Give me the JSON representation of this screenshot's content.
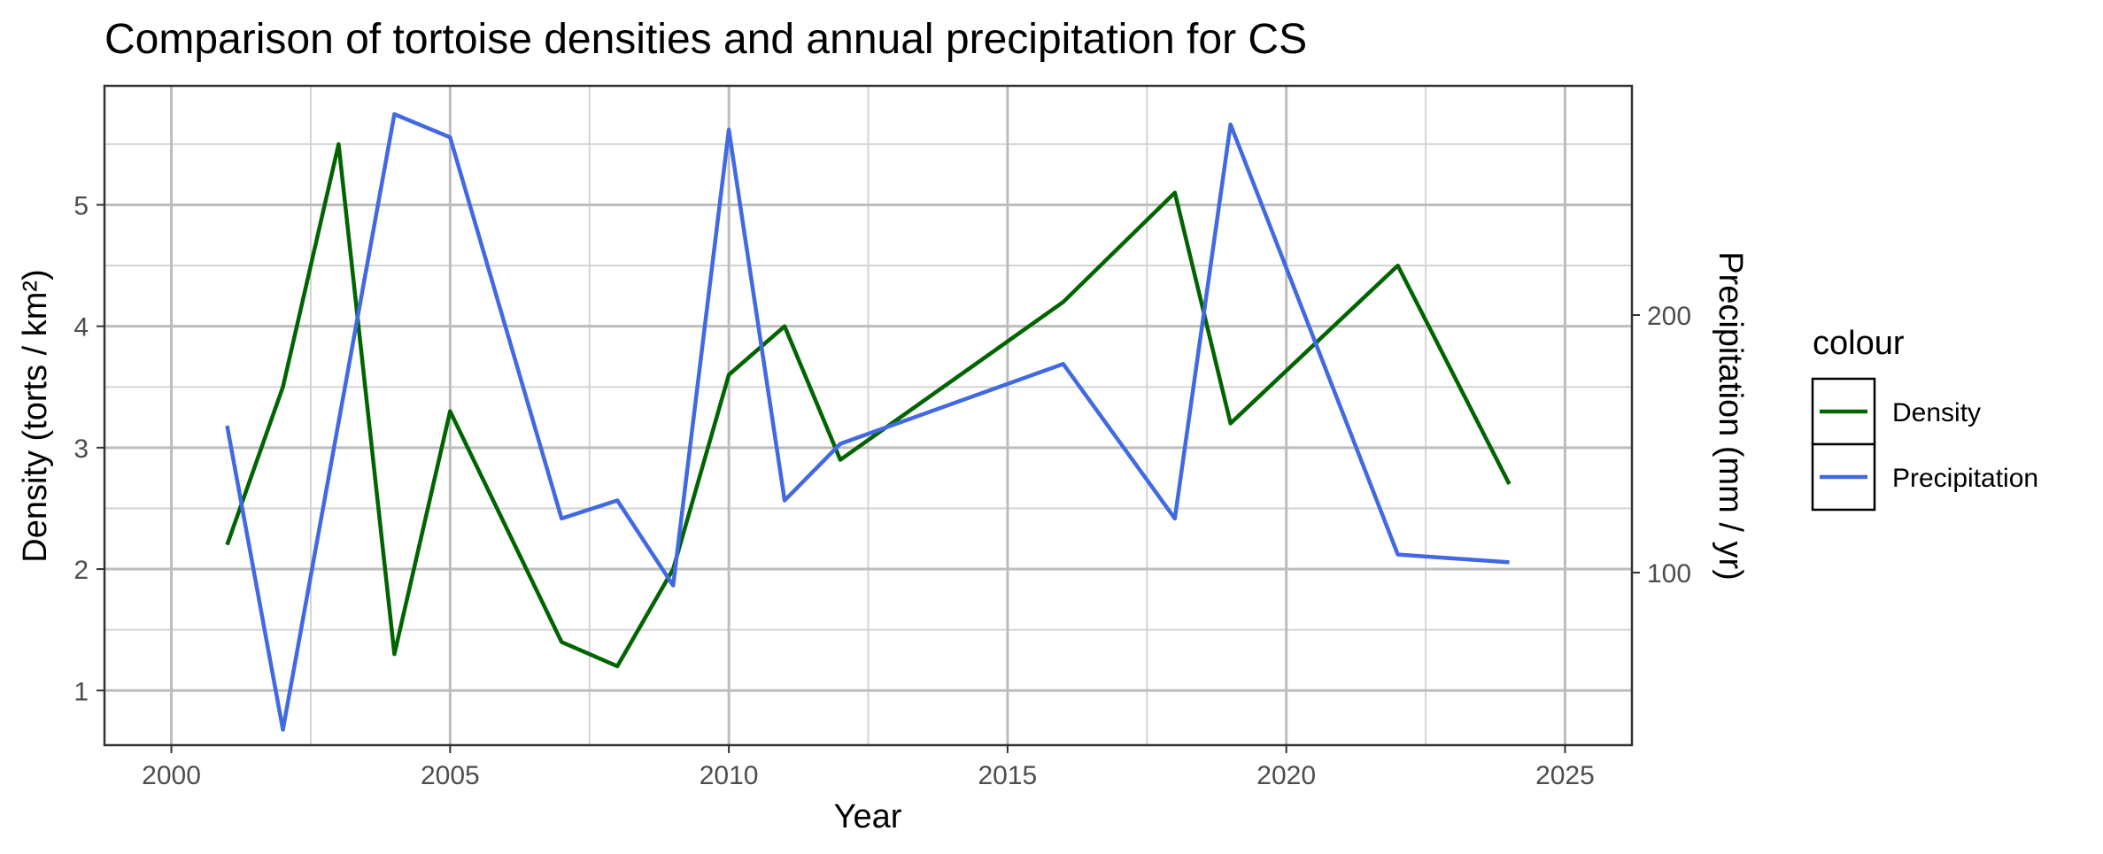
{
  "chart_data": {
    "type": "line",
    "title": "Comparison of tortoise densities and annual precipitation for CS",
    "xlabel": "Year",
    "ylabel": "Density (torts / km²)",
    "y2label": "Precipitation (mm / yr)",
    "xlim": [
      1998.8,
      2026.2
    ],
    "ylim": [
      0.55,
      5.98
    ],
    "y2lim": [
      33,
      289
    ],
    "x_ticks": [
      2000,
      2005,
      2010,
      2015,
      2020,
      2025
    ],
    "y_ticks": [
      1,
      2,
      3,
      4,
      5
    ],
    "y2_ticks": [
      100,
      200
    ],
    "grid": true,
    "legend": {
      "title": "colour",
      "placement": "right"
    },
    "series": [
      {
        "name": "Density",
        "color": "#006400",
        "axis": "left",
        "x": [
          2001,
          2002,
          2003,
          2004,
          2005,
          2007,
          2008,
          2009,
          2010,
          2011,
          2012,
          2016,
          2018,
          2019,
          2022,
          2024
        ],
        "values": [
          2.2,
          3.5,
          5.5,
          1.3,
          3.3,
          1.4,
          1.2,
          2.0,
          3.6,
          4.0,
          2.9,
          4.2,
          5.1,
          3.2,
          4.5,
          2.7
        ]
      },
      {
        "name": "Precipitation",
        "color": "#4169E1",
        "axis": "right",
        "x": [
          2001,
          2002,
          2004,
          2005,
          2007,
          2008,
          2009,
          2010,
          2011,
          2012,
          2016,
          2018,
          2019,
          2022,
          2024
        ],
        "values": [
          157,
          39,
          278,
          269,
          121,
          128,
          95,
          272,
          128,
          150,
          181,
          121,
          274,
          107,
          104
        ]
      }
    ]
  }
}
